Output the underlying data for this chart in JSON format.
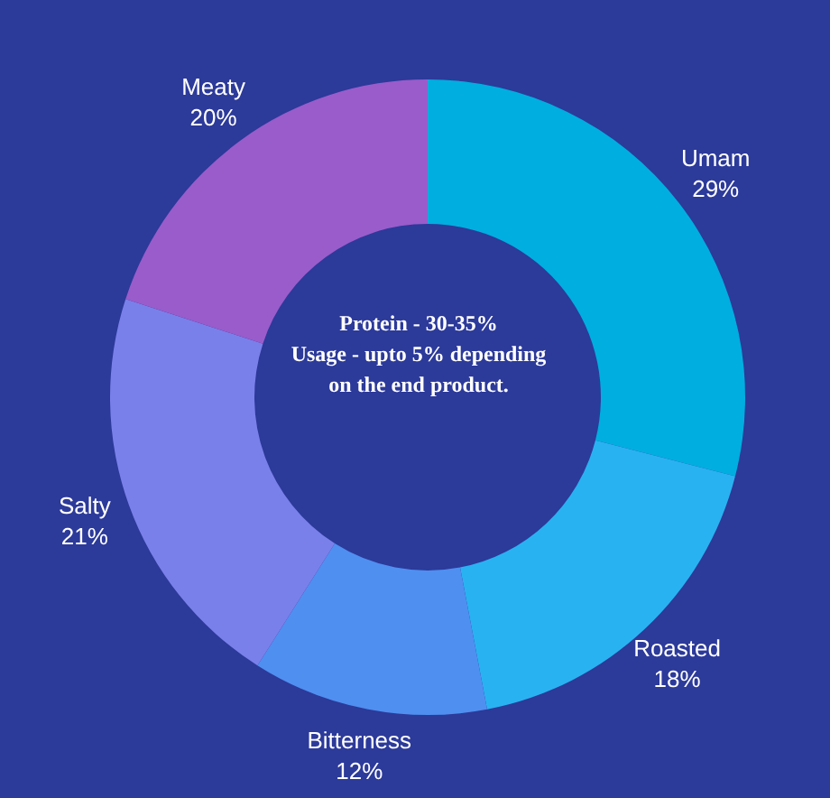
{
  "chart_data": {
    "type": "donut",
    "categories": [
      "Umam",
      "Roasted",
      "Bitterness",
      "Salty",
      "Meaty"
    ],
    "values": [
      29,
      18,
      12,
      21,
      20
    ],
    "colors": [
      "#00aee0",
      "#29b2f2",
      "#4f8ff0",
      "#7a80ea",
      "#9a5ccb"
    ],
    "value_labels": [
      "29%",
      "18%",
      "12%",
      "21%",
      "20%"
    ],
    "annotations": [
      "Protein - 30-35%",
      "Usage - upto 5% depending on the end product."
    ]
  }
}
